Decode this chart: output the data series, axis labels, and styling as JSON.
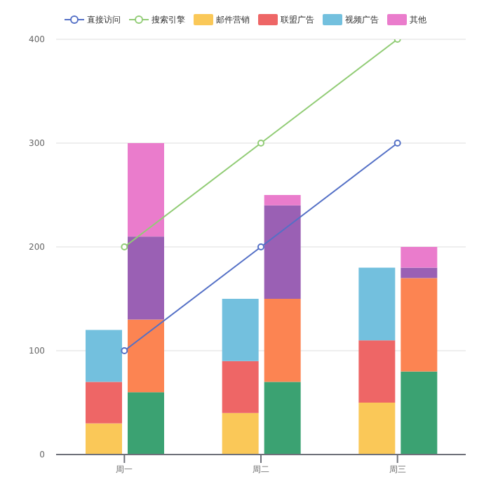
{
  "chart_data": {
    "type": "bar",
    "categories": [
      "周一",
      "周二",
      "周三"
    ],
    "ylim": [
      0,
      400
    ],
    "yticks": [
      0,
      100,
      200,
      300,
      400
    ],
    "grid": "y",
    "legend": "top",
    "marker": "circle",
    "series": [
      {
        "name": "直接访问",
        "type": "line",
        "color": "#5470c6",
        "values": [
          100,
          200,
          300
        ]
      },
      {
        "name": "搜索引擎",
        "type": "line",
        "color": "#91cc75",
        "values": [
          200,
          300,
          400
        ]
      },
      {
        "name": "邮件营销",
        "color": "#fac858",
        "base": [
          0,
          0,
          0
        ],
        "values": [
          30,
          40,
          50
        ]
      },
      {
        "name": "联盟广告",
        "color": "#ee6666",
        "base": [
          30,
          40,
          50
        ],
        "values": [
          40,
          50,
          60
        ]
      },
      {
        "name": "视频广告",
        "color": "#73c0de",
        "base": [
          70,
          90,
          110
        ],
        "values": [
          50,
          60,
          70
        ]
      },
      {
        "color": "#3ba272",
        "base": [
          0,
          0,
          0
        ],
        "values": [
          60,
          70,
          80
        ]
      },
      {
        "color": "#fc8452",
        "base": [
          60,
          70,
          80
        ],
        "values": [
          70,
          80,
          90
        ]
      },
      {
        "color": "#9a60b4",
        "base": [
          130,
          150,
          170
        ],
        "values": [
          80,
          90,
          10
        ]
      },
      {
        "name": "其他",
        "color": "#ea7ccc",
        "base": [
          210,
          240,
          180
        ],
        "values": [
          90,
          10,
          20
        ]
      }
    ]
  }
}
